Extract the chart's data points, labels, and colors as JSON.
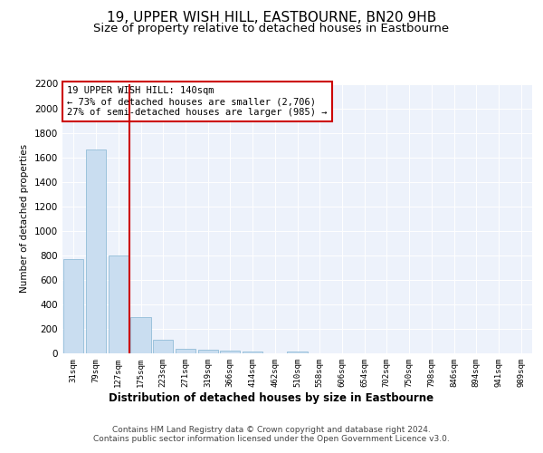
{
  "title": "19, UPPER WISH HILL, EASTBOURNE, BN20 9HB",
  "subtitle": "Size of property relative to detached houses in Eastbourne",
  "xlabel": "Distribution of detached houses by size in Eastbourne",
  "ylabel": "Number of detached properties",
  "categories": [
    "31sqm",
    "79sqm",
    "127sqm",
    "175sqm",
    "223sqm",
    "271sqm",
    "319sqm",
    "366sqm",
    "414sqm",
    "462sqm",
    "510sqm",
    "558sqm",
    "606sqm",
    "654sqm",
    "702sqm",
    "750sqm",
    "798sqm",
    "846sqm",
    "894sqm",
    "941sqm",
    "989sqm"
  ],
  "values": [
    770,
    1665,
    800,
    295,
    110,
    40,
    30,
    20,
    18,
    0,
    18,
    0,
    0,
    0,
    0,
    0,
    0,
    0,
    0,
    0,
    0
  ],
  "bar_color": "#c9ddf0",
  "bar_edge_color": "#92bcd8",
  "vline_color": "#cc0000",
  "annotation_text": "19 UPPER WISH HILL: 140sqm\n← 73% of detached houses are smaller (2,706)\n27% of semi-detached houses are larger (985) →",
  "annotation_box_color": "#ffffff",
  "annotation_box_edge": "#cc0000",
  "ylim": [
    0,
    2200
  ],
  "yticks": [
    0,
    200,
    400,
    600,
    800,
    1000,
    1200,
    1400,
    1600,
    1800,
    2000,
    2200
  ],
  "footer1": "Contains HM Land Registry data © Crown copyright and database right 2024.",
  "footer2": "Contains public sector information licensed under the Open Government Licence v3.0.",
  "plot_bg_color": "#edf2fb",
  "title_fontsize": 11,
  "subtitle_fontsize": 9.5,
  "annotation_fontsize": 7.5,
  "footer_fontsize": 6.5,
  "xlabel_fontsize": 8.5
}
